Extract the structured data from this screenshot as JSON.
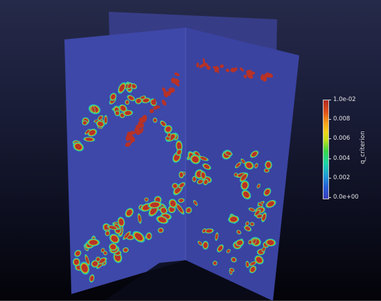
{
  "view": {
    "background_top": "#262a4a",
    "background_bottom": "#030308",
    "slice_color": "#3e48a8"
  },
  "colorbar": {
    "title": "q_criterion",
    "labels": [
      "1.0e-02",
      "0.008",
      "0.006",
      "0.004",
      "0.002",
      "0.0e+00"
    ],
    "colors": [
      "#3b3bbf",
      "#1fa0d6",
      "#37d64a",
      "#f2d21a",
      "#f49a1a",
      "#b22a22"
    ]
  }
}
